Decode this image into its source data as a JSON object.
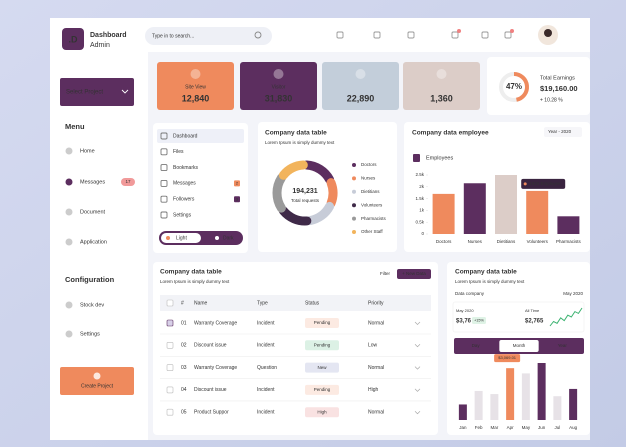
{
  "sidebar": {
    "logo": ".D",
    "title": "Dashboard",
    "subtitle": "Admin",
    "project_button": "Select Project",
    "menu_heading": "Menu",
    "menu": [
      {
        "label": "Home"
      },
      {
        "label": "Messages",
        "badge": "17"
      },
      {
        "label": "Document"
      },
      {
        "label": "Application"
      }
    ],
    "config_heading": "Configuration",
    "config": [
      "Stock dev",
      "Settings"
    ],
    "create_button": "Create Project"
  },
  "search_placeholder": "Type in to search...",
  "stats": [
    {
      "label": "Site View",
      "value": "12,840",
      "color": "#ef8a5d"
    },
    {
      "label": "Visitor",
      "value": "31,830",
      "color": "#5c2e5f"
    },
    {
      "value": "22,890",
      "color": "#c3ceda"
    },
    {
      "value": "1,360",
      "color": "#dccdc8"
    }
  ],
  "earnings": {
    "title": "Total Earnings",
    "amount": "$19,160.00",
    "change": "+ 10.28 %",
    "chart": {
      "type": "donut",
      "values": [
        47
      ],
      "value_labels": [
        "47%"
      ],
      "color": "#ef8a5d"
    }
  },
  "nav": {
    "items": [
      {
        "label": "Dashboard"
      },
      {
        "label": "Files"
      },
      {
        "label": "Bookmarks"
      },
      {
        "label": "Messages",
        "badge": "2",
        "badge_color": "#ef8a5d"
      },
      {
        "label": "Followers",
        "badge": "3",
        "badge_color": "#5c2e5f"
      },
      {
        "label": "Settings"
      }
    ],
    "theme": [
      "Light",
      "Dark"
    ]
  },
  "requests": {
    "title": "Company data table",
    "subtitle": "Lorem Ipsum is simply dummy text",
    "total": "194,231",
    "total_label": "Total requests",
    "chart": {
      "type": "donut",
      "categories": [
        "Doctors",
        "Nurses",
        "Dietitians",
        "Volunteers",
        "Pharmacists",
        "Other Staff"
      ],
      "values": [
        18,
        14,
        16,
        17,
        20,
        15
      ],
      "colors": [
        "#5c2e5f",
        "#ef8a5d",
        "#c7ccd8",
        "#3f2a48",
        "#9a9a9a",
        "#f2b45c"
      ]
    }
  },
  "employees": {
    "title": "Company data employee",
    "filter": "Year - 2020",
    "chart": {
      "type": "bar",
      "legend": "Employees",
      "categories": [
        "Doctors",
        "Nurses",
        "Dietitians",
        "Volunteers",
        "Pharmacists"
      ],
      "values": [
        1700,
        2150,
        2500,
        1826,
        750
      ],
      "colors": [
        "#ef8a5d",
        "#5c2e5f",
        "#dccdc8",
        "#ef8a5d",
        "#5c2e5f"
      ],
      "ylim": [
        0,
        2500
      ],
      "yticks": [
        0,
        {
          "value": 500,
          "label": "0.5k"
        },
        {
          "value": 1000,
          "label": "1k"
        },
        {
          "value": 1500,
          "label": "1.5k"
        },
        {
          "value": 2000,
          "label": "2k"
        },
        {
          "value": 2500,
          "label": "2.5k"
        }
      ],
      "annotation": "1826 Employee"
    }
  },
  "table": {
    "title": "Company data table",
    "subtitle": "Lorem Ipsum is simply dummy text",
    "filter": "Filter",
    "new_button": "+ New Data",
    "columns": [
      "#",
      "Name",
      "Type",
      "Status",
      "Priority"
    ],
    "rows": [
      {
        "id": "01",
        "name": "Warranty Coverage",
        "type": "Incident",
        "status": "Pending",
        "status_color": "#ef8a5d",
        "priority": "Normal"
      },
      {
        "id": "02",
        "name": "Discount issue",
        "type": "Incident",
        "status": "Pending",
        "status_color": "#3cb371",
        "priority": "Low"
      },
      {
        "id": "03",
        "name": "Warranty Coverage",
        "type": "Question",
        "status": "New",
        "status_color": "#6b74b8",
        "priority": "Normal"
      },
      {
        "id": "04",
        "name": "Discount issue",
        "type": "Incident",
        "status": "Pending",
        "status_color": "#ef8a5d",
        "priority": "High"
      },
      {
        "id": "05",
        "name": "Product Suppor",
        "type": "Incident",
        "status": "High",
        "status_color": "#e06060",
        "priority": "Normal"
      }
    ]
  },
  "summary": {
    "title": "Company data table",
    "subtitle": "Lorem Ipsum is simply dummy text",
    "label": "Data company",
    "period": "May 2020",
    "current": {
      "label": "May 2020",
      "value": "$3,76",
      "change": "+15%"
    },
    "all_time": {
      "label": "All Time",
      "value": "$2,765"
    },
    "sparkline": {
      "type": "line",
      "values": [
        2,
        3,
        2.6,
        3.8,
        3.2,
        4.4,
        4,
        5.2,
        4.8,
        6
      ],
      "color": "#3cb371"
    },
    "tabs": [
      "Day",
      "Month",
      "Year"
    ],
    "chart": {
      "type": "bar",
      "categories": [
        "Jan",
        "Feb",
        "Mar",
        "Apr",
        "May",
        "Jun",
        "Jul",
        "Aug"
      ],
      "values": [
        920,
        1720,
        1535,
        3069.01,
        2760,
        3375,
        1410,
        1840
      ],
      "value_labels": [
        null,
        null,
        null,
        "$3,069.01",
        null,
        null,
        null,
        null
      ],
      "colors": [
        "#5c2e5f",
        "#e7e2e7",
        "#e7e2e7",
        "#ef8a5d",
        "#e7e2e7",
        "#5c2e5f",
        "#e7e2e7",
        "#5c2e5f"
      ]
    }
  }
}
